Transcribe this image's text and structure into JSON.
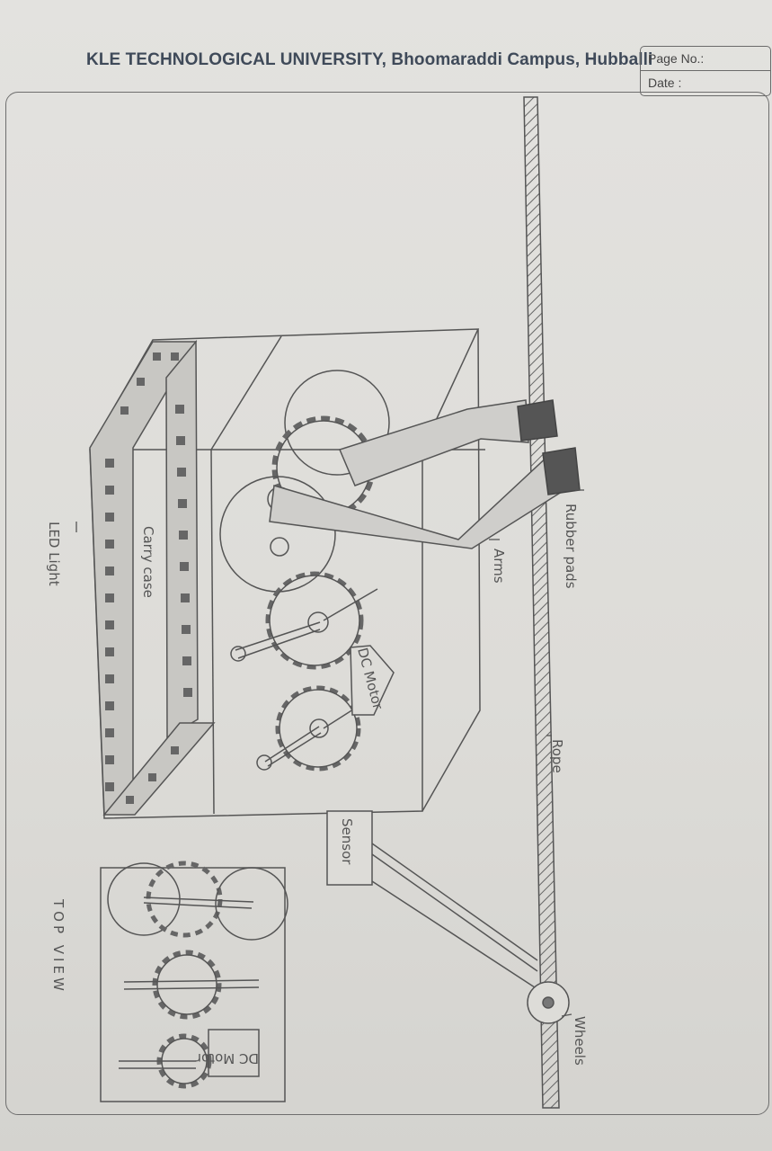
{
  "header": {
    "university": "KLE TECHNOLOGICAL UNIVERSITY, Bhoomaraddi Campus, Hubballi",
    "page_no_label": "Page No.:",
    "date_label": "Date :"
  },
  "labels": {
    "led_light": "LED Light",
    "carry_case": "Carry case",
    "dc_motor_side": "DC Motor",
    "arms": "Arms",
    "rubber_pads": "Rubber pads",
    "rope": "Rope",
    "sensor": "Sensor",
    "wheels": "Wheels",
    "top_view": "TOP VIEW",
    "dc_motor_top": "DC Motor"
  }
}
